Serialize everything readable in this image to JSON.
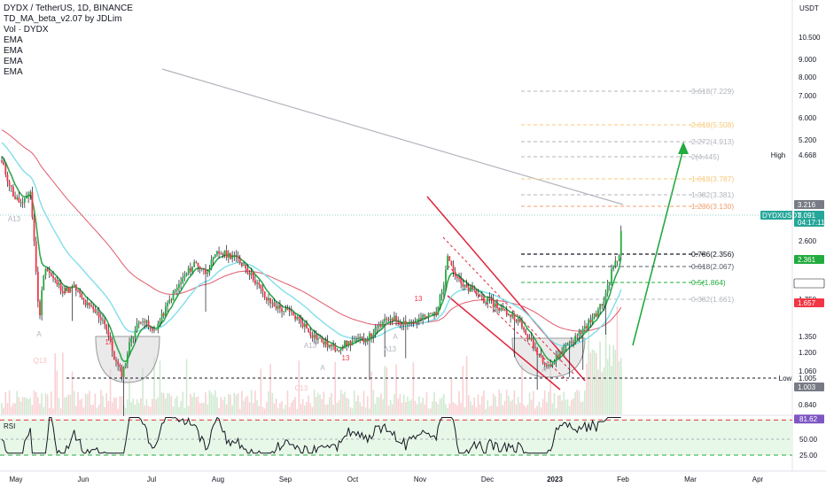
{
  "header": {
    "symbol_line": "DYDX / TetherUS, 1D, BINANCE",
    "indicators": [
      "TD_MA_beta_v2.07 by JDLim",
      "Vol · DYDX",
      "EMA",
      "EMA",
      "EMA",
      "EMA"
    ]
  },
  "price_axis": {
    "currency": "USDT",
    "ticks": [
      "10.500",
      "9.000",
      "8.000",
      "7.000",
      "6.000",
      "5.200",
      "4.668",
      "3.216",
      "3.091",
      "2.600",
      "2.361",
      "1.948",
      "1.750",
      "1.657",
      "1.350",
      "1.200",
      "1.060",
      "1.005",
      "1.003",
      "0.840"
    ],
    "tags": [
      {
        "label": "3.216",
        "bg": "#787b86"
      },
      {
        "label": "DYDXUSDT",
        "bg": "#26a69a"
      },
      {
        "label": "3.091",
        "bg": "#26a69a"
      },
      {
        "label": "04:17:11",
        "bg": "#26a69a"
      },
      {
        "label": "2.361",
        "bg": "#22ab3f"
      },
      {
        "label": "1.948",
        "bg": "#ffffff"
      },
      {
        "label": "1.657",
        "bg": "#f23645"
      },
      {
        "label": "1.003",
        "bg": "#787b86"
      }
    ],
    "high_label": "High",
    "low_label": "Low"
  },
  "time_axis": [
    "May",
    "Jun",
    "Jul",
    "Aug",
    "Sep",
    "Oct",
    "Nov",
    "Dec",
    "2023",
    "Feb",
    "Mar",
    "Apr"
  ],
  "fib_levels": [
    {
      "label": "3.618(7.229)",
      "color": "#b2b5be"
    },
    {
      "label": "2.618(5.508)",
      "color": "#f7c87a"
    },
    {
      "label": "2.272(4.913)",
      "color": "#b2b5be"
    },
    {
      "label": "2(4.445)",
      "color": "#b2b5be"
    },
    {
      "label": "1.618(3.787)",
      "color": "#f7c87a"
    },
    {
      "label": "1.382(3.381)",
      "color": "#b2b5be"
    },
    {
      "label": "1.236(3.130)",
      "color": "#f0a070"
    },
    {
      "label": "0.786(2.356)",
      "color": "#131722"
    },
    {
      "label": "0.618(2.067)",
      "color": "#555a66"
    },
    {
      "label": "0.5(1.864)",
      "color": "#22ab3f"
    },
    {
      "label": "0.382(1.661)",
      "color": "#b2b5be"
    }
  ],
  "rsi": {
    "label": "RSI",
    "ticks": [
      "81.62",
      "50.00",
      "25.00"
    ],
    "current_bg": "#7e57c2"
  },
  "td_marks": [
    "13",
    "13",
    "13",
    "13",
    "A13",
    "A13",
    "C13",
    "A13",
    "A",
    "A",
    "A",
    "A"
  ],
  "colors": {
    "up": "#22ab3f",
    "down": "#f23645",
    "wick": "#131722",
    "ema_slow": "#b2b5be",
    "ema_mid": "#e05a6a",
    "ema_fast": "#80deea",
    "channel": "#e0253b",
    "arrow": "#22ab3f"
  },
  "chart_data": {
    "type": "line",
    "title": "DYDX / TetherUS, 1D, BINANCE",
    "x": [
      "May",
      "Jun",
      "Jul",
      "Aug",
      "Sep",
      "Oct",
      "Nov",
      "Dec",
      "2023",
      "Feb"
    ],
    "series": [
      {
        "name": "DYDXUSDT",
        "values": [
          2.9,
          1.1,
          1.6,
          2.35,
          1.55,
          1.3,
          1.55,
          1.3,
          1.3,
          3.09
        ]
      }
    ],
    "ylim": [
      0.8,
      12
    ],
    "y_scale": "log",
    "last_price": 3.091,
    "rsi_last": 81.62
  }
}
